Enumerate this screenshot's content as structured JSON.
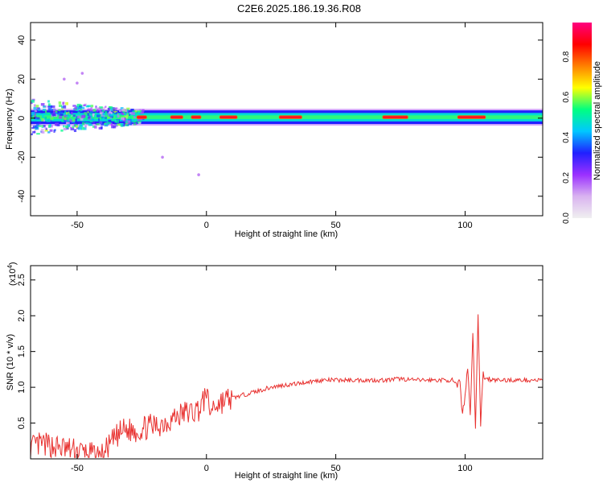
{
  "figure": {
    "title": "C2E6.2025.186.19.36.R08"
  },
  "chart_data": [
    {
      "type": "heatmap",
      "xlabel": "Height of straight line (km)",
      "ylabel": "Frequency (Hz)",
      "xlim": [
        -68,
        130
      ],
      "ylim": [
        -50,
        49
      ],
      "xticks": [
        -50,
        0,
        50,
        100
      ],
      "yticks": [
        -40,
        -20,
        0,
        20,
        40
      ],
      "xtick_labels": [
        "-50",
        "0",
        "50",
        "100"
      ],
      "ytick_labels": [
        "-40",
        "-20",
        "0",
        "20",
        "40"
      ],
      "colorbar": {
        "label": "Normalized spectral amplitude",
        "range": [
          0,
          0.97
        ],
        "ticks": [
          0.0,
          0.2,
          0.4,
          0.6,
          0.8
        ],
        "tick_labels": [
          "0.0",
          "0.2",
          "0.4",
          "0.6",
          "0.8"
        ],
        "colormap": [
          "#f0f0f0",
          "#d9b3f0",
          "#9b30ff",
          "#2020ff",
          "#00c8ff",
          "#00ff80",
          "#ffff00",
          "#ff8000",
          "#ff0000",
          "#ff0080"
        ]
      },
      "band": {
        "center_hz": 0.5,
        "core_halfwidth_hz": 1.2,
        "outer_halfwidth_hz": 3.5,
        "noisy_region_km": [
          -68,
          -25
        ],
        "noisy_spread_hz": [
          -10,
          8
        ],
        "bright_segments_km": [
          [
            -27,
            -23
          ],
          [
            -14,
            -9
          ],
          [
            -6,
            -2
          ],
          [
            5,
            12
          ],
          [
            28,
            37
          ],
          [
            68,
            78
          ],
          [
            97,
            108
          ]
        ],
        "scatter_points": [
          [
            -48,
            23
          ],
          [
            -50,
            18
          ],
          [
            -17,
            -20
          ],
          [
            -3,
            -29
          ],
          [
            -55,
            20
          ]
        ]
      }
    },
    {
      "type": "line",
      "xlabel": "Height of straight line (km)",
      "ylabel": "SNR (10 * v/v)",
      "y_multiplier": "(x10",
      "y_multiplier_exp": "4",
      "y_multiplier_close": ")",
      "xlim": [
        -68,
        130
      ],
      "ylim": [
        0,
        2.7
      ],
      "xticks": [
        -50,
        0,
        50,
        100
      ],
      "yticks": [
        0.5,
        1.0,
        1.5,
        2.0,
        2.5
      ],
      "xtick_labels": [
        "-50",
        "0",
        "50",
        "100"
      ],
      "ytick_labels": [
        "0.5",
        "1.0",
        "1.5",
        "2.0",
        "2.5"
      ],
      "color": "#e8312f",
      "series": [
        {
          "x": [
            -68,
            -64,
            -60,
            -56,
            -52,
            -48,
            -44,
            -41,
            -38,
            -35,
            -32,
            -29,
            -26,
            -23,
            -20,
            -17,
            -14,
            -11,
            -8,
            -5,
            -3,
            -1,
            0,
            1,
            3,
            6,
            10,
            15,
            20,
            25,
            30,
            35,
            40,
            45,
            50,
            55,
            60,
            65,
            70,
            75,
            80,
            85,
            90,
            95,
            97,
            98,
            99,
            100,
            101,
            102,
            103,
            104,
            105,
            106,
            107,
            108,
            109,
            110,
            112,
            115,
            120,
            125,
            130
          ],
          "y": [
            0.15,
            0.2,
            0.18,
            0.15,
            0.12,
            0.1,
            0.05,
            0.02,
            0.15,
            0.3,
            0.4,
            0.4,
            0.4,
            0.45,
            0.45,
            0.5,
            0.55,
            0.6,
            0.65,
            0.65,
            0.7,
            0.8,
            1.0,
            0.65,
            0.75,
            0.8,
            0.85,
            0.9,
            0.95,
            1.0,
            1.03,
            1.05,
            1.08,
            1.1,
            1.1,
            1.1,
            1.1,
            1.1,
            1.1,
            1.12,
            1.1,
            1.1,
            1.1,
            1.1,
            1.0,
            1.1,
            0.6,
            0.9,
            1.3,
            0.6,
            1.8,
            0.4,
            2.0,
            0.5,
            1.2,
            1.1,
            1.12,
            1.1,
            1.1,
            1.1,
            1.1,
            1.1,
            1.1
          ]
        }
      ]
    }
  ]
}
